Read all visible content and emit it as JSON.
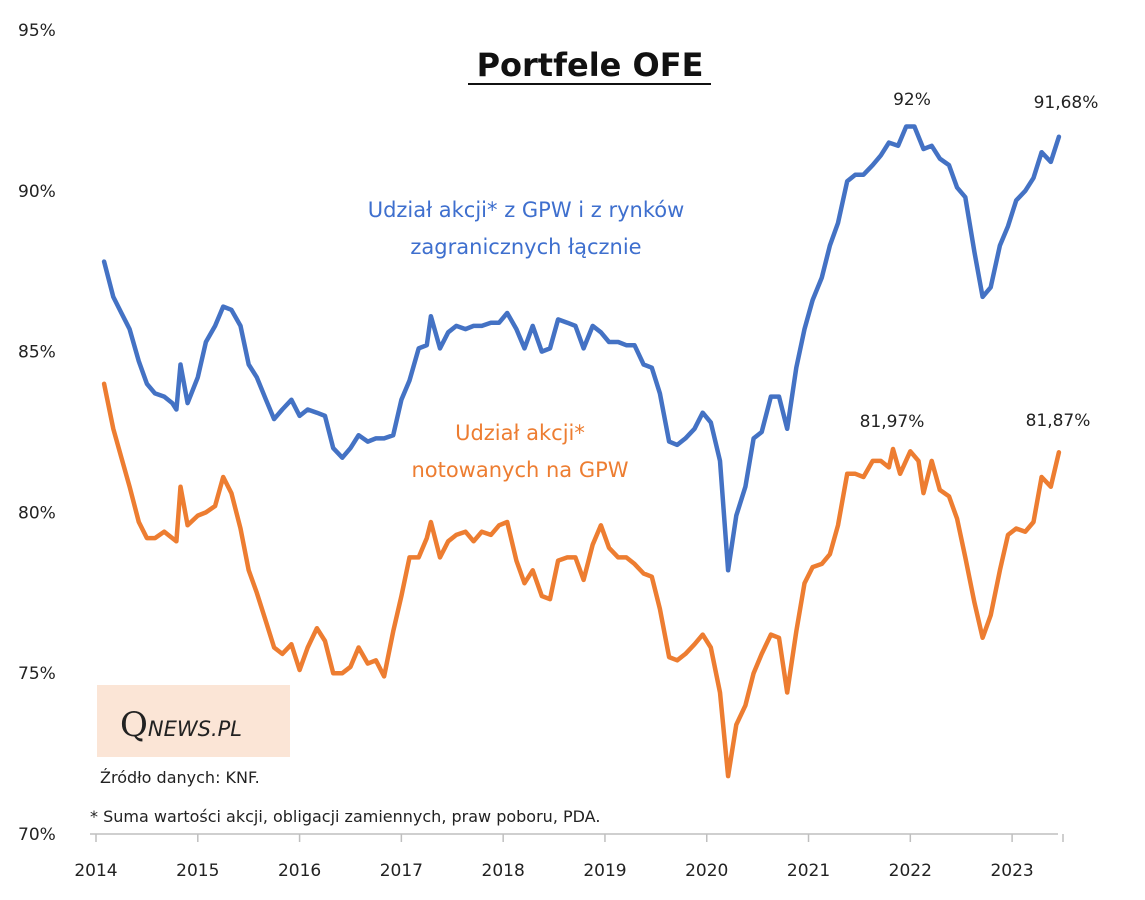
{
  "chart_data": {
    "type": "line",
    "title": "Portfele OFE",
    "xlabel": "",
    "ylabel": "",
    "ylim": [
      70,
      95
    ],
    "xlim": [
      2014.0,
      2023.5
    ],
    "y_ticks": [
      "70%",
      "75%",
      "80%",
      "85%",
      "90%",
      "95%"
    ],
    "x_ticks": [
      "2014",
      "2015",
      "2016",
      "2017",
      "2018",
      "2019",
      "2020",
      "2021",
      "2022",
      "2023"
    ],
    "grid": false,
    "series": [
      {
        "name": "Udział akcji* z GPW i z rynków zagranicznych łącznie",
        "color": "#4472c4",
        "points": [
          [
            2014.08,
            87.8
          ],
          [
            2014.17,
            86.7
          ],
          [
            2014.25,
            86.2
          ],
          [
            2014.33,
            85.7
          ],
          [
            2014.42,
            84.7
          ],
          [
            2014.5,
            84.0
          ],
          [
            2014.58,
            83.7
          ],
          [
            2014.67,
            83.6
          ],
          [
            2014.75,
            83.4
          ],
          [
            2014.79,
            83.2
          ],
          [
            2014.83,
            84.6
          ],
          [
            2014.9,
            83.4
          ],
          [
            2015.0,
            84.2
          ],
          [
            2015.08,
            85.3
          ],
          [
            2015.17,
            85.8
          ],
          [
            2015.25,
            86.4
          ],
          [
            2015.33,
            86.3
          ],
          [
            2015.42,
            85.8
          ],
          [
            2015.5,
            84.6
          ],
          [
            2015.58,
            84.2
          ],
          [
            2015.67,
            83.5
          ],
          [
            2015.75,
            82.9
          ],
          [
            2015.83,
            83.2
          ],
          [
            2015.92,
            83.5
          ],
          [
            2016.0,
            83.0
          ],
          [
            2016.08,
            83.2
          ],
          [
            2016.17,
            83.1
          ],
          [
            2016.25,
            83.0
          ],
          [
            2016.33,
            82.0
          ],
          [
            2016.42,
            81.7
          ],
          [
            2016.5,
            82.0
          ],
          [
            2016.58,
            82.4
          ],
          [
            2016.67,
            82.2
          ],
          [
            2016.75,
            82.3
          ],
          [
            2016.83,
            82.3
          ],
          [
            2016.92,
            82.4
          ],
          [
            2017.0,
            83.5
          ],
          [
            2017.08,
            84.1
          ],
          [
            2017.17,
            85.1
          ],
          [
            2017.25,
            85.2
          ],
          [
            2017.29,
            86.1
          ],
          [
            2017.38,
            85.1
          ],
          [
            2017.46,
            85.6
          ],
          [
            2017.54,
            85.8
          ],
          [
            2017.63,
            85.7
          ],
          [
            2017.71,
            85.8
          ],
          [
            2017.79,
            85.8
          ],
          [
            2017.88,
            85.9
          ],
          [
            2017.96,
            85.9
          ],
          [
            2018.04,
            86.2
          ],
          [
            2018.13,
            85.7
          ],
          [
            2018.21,
            85.1
          ],
          [
            2018.29,
            85.8
          ],
          [
            2018.38,
            85.0
          ],
          [
            2018.46,
            85.1
          ],
          [
            2018.54,
            86.0
          ],
          [
            2018.63,
            85.9
          ],
          [
            2018.71,
            85.8
          ],
          [
            2018.79,
            85.1
          ],
          [
            2018.88,
            85.8
          ],
          [
            2018.96,
            85.6
          ],
          [
            2019.04,
            85.3
          ],
          [
            2019.13,
            85.3
          ],
          [
            2019.21,
            85.2
          ],
          [
            2019.29,
            85.2
          ],
          [
            2019.38,
            84.6
          ],
          [
            2019.46,
            84.5
          ],
          [
            2019.54,
            83.7
          ],
          [
            2019.63,
            82.2
          ],
          [
            2019.71,
            82.1
          ],
          [
            2019.79,
            82.3
          ],
          [
            2019.88,
            82.6
          ],
          [
            2019.96,
            83.1
          ],
          [
            2020.04,
            82.8
          ],
          [
            2020.13,
            81.6
          ],
          [
            2020.21,
            78.2
          ],
          [
            2020.29,
            79.9
          ],
          [
            2020.38,
            80.8
          ],
          [
            2020.46,
            82.3
          ],
          [
            2020.54,
            82.5
          ],
          [
            2020.63,
            83.6
          ],
          [
            2020.71,
            83.6
          ],
          [
            2020.79,
            82.6
          ],
          [
            2020.88,
            84.5
          ],
          [
            2020.96,
            85.7
          ],
          [
            2021.04,
            86.6
          ],
          [
            2021.13,
            87.3
          ],
          [
            2021.21,
            88.3
          ],
          [
            2021.29,
            89.0
          ],
          [
            2021.38,
            90.3
          ],
          [
            2021.46,
            90.5
          ],
          [
            2021.54,
            90.5
          ],
          [
            2021.63,
            90.8
          ],
          [
            2021.71,
            91.1
          ],
          [
            2021.79,
            91.5
          ],
          [
            2021.88,
            91.4
          ],
          [
            2021.96,
            92.0
          ],
          [
            2022.04,
            92.0
          ],
          [
            2022.13,
            91.3
          ],
          [
            2022.21,
            91.4
          ],
          [
            2022.29,
            91.0
          ],
          [
            2022.38,
            90.8
          ],
          [
            2022.46,
            90.1
          ],
          [
            2022.54,
            89.8
          ],
          [
            2022.63,
            88.1
          ],
          [
            2022.71,
            86.7
          ],
          [
            2022.79,
            87.0
          ],
          [
            2022.88,
            88.3
          ],
          [
            2022.96,
            88.9
          ],
          [
            2023.04,
            89.7
          ],
          [
            2023.13,
            90.0
          ],
          [
            2023.21,
            90.4
          ],
          [
            2023.29,
            91.2
          ],
          [
            2023.38,
            90.9
          ],
          [
            2023.46,
            91.68
          ]
        ]
      },
      {
        "name": "Udział akcji* notowanych na GPW",
        "color": "#ed7d31",
        "points": [
          [
            2014.08,
            84.0
          ],
          [
            2014.17,
            82.6
          ],
          [
            2014.25,
            81.7
          ],
          [
            2014.33,
            80.8
          ],
          [
            2014.42,
            79.7
          ],
          [
            2014.5,
            79.2
          ],
          [
            2014.58,
            79.2
          ],
          [
            2014.67,
            79.4
          ],
          [
            2014.75,
            79.2
          ],
          [
            2014.79,
            79.1
          ],
          [
            2014.83,
            80.8
          ],
          [
            2014.9,
            79.6
          ],
          [
            2015.0,
            79.9
          ],
          [
            2015.08,
            80.0
          ],
          [
            2015.17,
            80.2
          ],
          [
            2015.25,
            81.1
          ],
          [
            2015.33,
            80.6
          ],
          [
            2015.42,
            79.5
          ],
          [
            2015.5,
            78.2
          ],
          [
            2015.58,
            77.5
          ],
          [
            2015.67,
            76.6
          ],
          [
            2015.75,
            75.8
          ],
          [
            2015.83,
            75.6
          ],
          [
            2015.92,
            75.9
          ],
          [
            2016.0,
            75.1
          ],
          [
            2016.08,
            75.8
          ],
          [
            2016.17,
            76.4
          ],
          [
            2016.25,
            76.0
          ],
          [
            2016.33,
            75.0
          ],
          [
            2016.42,
            75.0
          ],
          [
            2016.5,
            75.2
          ],
          [
            2016.58,
            75.8
          ],
          [
            2016.67,
            75.3
          ],
          [
            2016.75,
            75.4
          ],
          [
            2016.83,
            74.9
          ],
          [
            2016.92,
            76.3
          ],
          [
            2017.0,
            77.4
          ],
          [
            2017.08,
            78.6
          ],
          [
            2017.17,
            78.6
          ],
          [
            2017.25,
            79.2
          ],
          [
            2017.29,
            79.7
          ],
          [
            2017.38,
            78.6
          ],
          [
            2017.46,
            79.1
          ],
          [
            2017.54,
            79.3
          ],
          [
            2017.63,
            79.4
          ],
          [
            2017.71,
            79.1
          ],
          [
            2017.79,
            79.4
          ],
          [
            2017.88,
            79.3
          ],
          [
            2017.96,
            79.6
          ],
          [
            2018.04,
            79.7
          ],
          [
            2018.13,
            78.5
          ],
          [
            2018.21,
            77.8
          ],
          [
            2018.29,
            78.2
          ],
          [
            2018.38,
            77.4
          ],
          [
            2018.46,
            77.3
          ],
          [
            2018.54,
            78.5
          ],
          [
            2018.63,
            78.6
          ],
          [
            2018.71,
            78.6
          ],
          [
            2018.79,
            77.9
          ],
          [
            2018.88,
            79.0
          ],
          [
            2018.96,
            79.6
          ],
          [
            2019.04,
            78.9
          ],
          [
            2019.13,
            78.6
          ],
          [
            2019.21,
            78.6
          ],
          [
            2019.29,
            78.4
          ],
          [
            2019.38,
            78.1
          ],
          [
            2019.46,
            78.0
          ],
          [
            2019.54,
            77.0
          ],
          [
            2019.63,
            75.5
          ],
          [
            2019.71,
            75.4
          ],
          [
            2019.79,
            75.6
          ],
          [
            2019.88,
            75.9
          ],
          [
            2019.96,
            76.2
          ],
          [
            2020.04,
            75.8
          ],
          [
            2020.13,
            74.4
          ],
          [
            2020.21,
            71.8
          ],
          [
            2020.29,
            73.4
          ],
          [
            2020.38,
            74.0
          ],
          [
            2020.46,
            75.0
          ],
          [
            2020.54,
            75.6
          ],
          [
            2020.63,
            76.2
          ],
          [
            2020.71,
            76.1
          ],
          [
            2020.79,
            74.4
          ],
          [
            2020.88,
            76.3
          ],
          [
            2020.96,
            77.8
          ],
          [
            2021.04,
            78.3
          ],
          [
            2021.13,
            78.4
          ],
          [
            2021.21,
            78.7
          ],
          [
            2021.29,
            79.6
          ],
          [
            2021.38,
            81.2
          ],
          [
            2021.46,
            81.2
          ],
          [
            2021.54,
            81.1
          ],
          [
            2021.63,
            81.6
          ],
          [
            2021.71,
            81.6
          ],
          [
            2021.79,
            81.4
          ],
          [
            2021.83,
            81.97
          ],
          [
            2021.9,
            81.2
          ],
          [
            2022.0,
            81.9
          ],
          [
            2022.08,
            81.6
          ],
          [
            2022.13,
            80.6
          ],
          [
            2022.21,
            81.6
          ],
          [
            2022.29,
            80.7
          ],
          [
            2022.38,
            80.5
          ],
          [
            2022.46,
            79.8
          ],
          [
            2022.54,
            78.6
          ],
          [
            2022.63,
            77.2
          ],
          [
            2022.71,
            76.1
          ],
          [
            2022.79,
            76.8
          ],
          [
            2022.88,
            78.2
          ],
          [
            2022.96,
            79.3
          ],
          [
            2023.04,
            79.5
          ],
          [
            2023.13,
            79.4
          ],
          [
            2023.21,
            79.7
          ],
          [
            2023.29,
            81.1
          ],
          [
            2023.38,
            80.8
          ],
          [
            2023.46,
            81.87
          ]
        ]
      }
    ],
    "annotations": [
      {
        "text": "92%"
      },
      {
        "text": "91,68%"
      },
      {
        "text": "81,97%"
      },
      {
        "text": "81,87%"
      }
    ],
    "series_labels": {
      "blue_line1": "Udział akcji* z GPW i z rynków",
      "blue_line2": "zagranicznych łącznie",
      "orange_line1": "Udział akcji*",
      "orange_line2": "notowanych  na GPW"
    }
  },
  "logo": {
    "q": "Q",
    "rest": "NEWS.PL",
    "bg": "#fbe5d6"
  },
  "source": "Źródło danych: KNF.",
  "footnote": "* Suma wartości akcji, obligacji zamiennych, praw poboru, PDA."
}
